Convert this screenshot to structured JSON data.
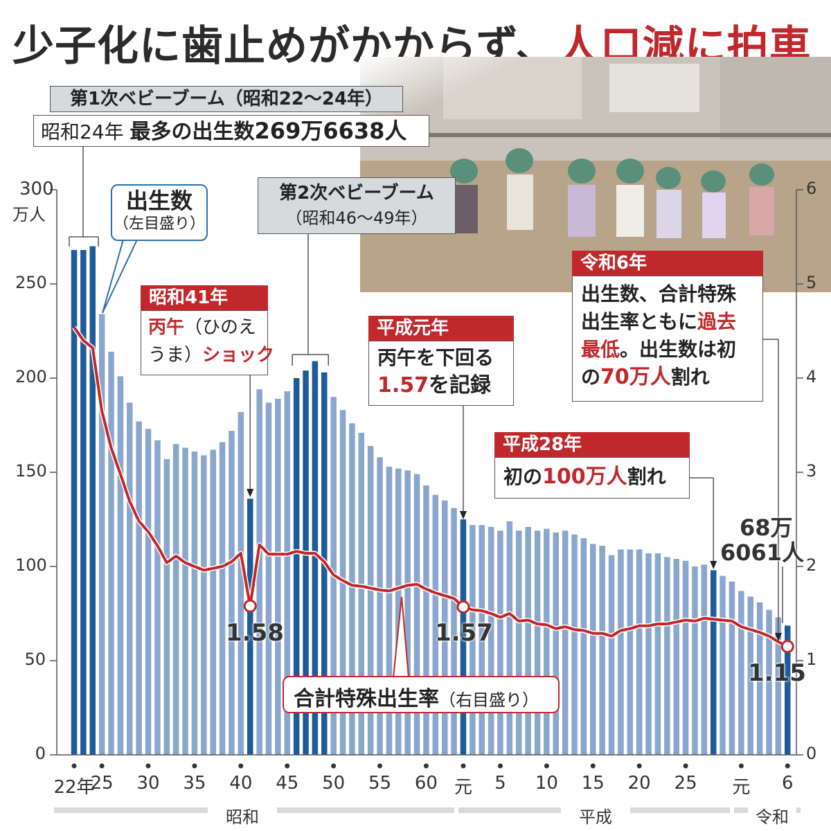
{
  "title": {
    "part1": "少子化に歯止めがかからず、",
    "part2": "人口減に拍車"
  },
  "left_axis": {
    "unit_line1": "300",
    "unit_line2": "万人",
    "ticks": [
      "0",
      "50",
      "100",
      "150",
      "200",
      "250"
    ]
  },
  "right_axis": {
    "ticks": [
      "0",
      "1",
      "2",
      "3",
      "4",
      "5",
      "6"
    ]
  },
  "x_ticks": [
    "22年",
    "25",
    "30",
    "35",
    "40",
    "45",
    "50",
    "55",
    "60",
    "元",
    "5",
    "10",
    "15",
    "20",
    "25",
    "元",
    "6"
  ],
  "eras": [
    "昭和",
    "平成",
    "令和"
  ],
  "legend_births": {
    "line1": "出生数",
    "line2": "（左目盛り）"
  },
  "legend_tfr": {
    "main": "合計特殊出生率",
    "sub": "（右目盛り）"
  },
  "boom1": {
    "head": "第1次ベビーブーム（昭和22～24年）",
    "body_pre": "昭和24年 ",
    "body_bold": "最多の出生数",
    "body_num": "269万6638人"
  },
  "boom2": {
    "line1": "第2次ベビーブーム",
    "line2": "（昭和46～49年）"
  },
  "s41": {
    "head": "昭和41年",
    "l1_red": "丙午",
    "l1_rest": "（ひのえ",
    "l2_rest": "うま）",
    "l2_red": "ショック"
  },
  "h1": {
    "head": "平成元年",
    "line1": "丙午を下回る",
    "line2_red": "1.57",
    "line2_rest": "を記録"
  },
  "h28": {
    "head": "平成28年",
    "pre": "初の",
    "red": "100万人",
    "post": "割れ"
  },
  "r6": {
    "head": "令和6年",
    "l1": "出生数、合計特殊",
    "l2_pre": "出生率ともに",
    "l2_red": "過去",
    "l3_red": "最低",
    "l3_rest": "。出生数は初",
    "l4_pre": "の",
    "l4_red": "70万人",
    "l4_post": "割れ"
  },
  "annotations": {
    "tfr_1966": "1.58",
    "tfr_1989": "1.57",
    "tfr_2024": "1.15",
    "births_2024_l1": "68万",
    "births_2024_l2": "6061人"
  },
  "colors": {
    "bar_light": "#8aa6cc",
    "bar_dark": "#1f5b9a",
    "line": "#c0282b",
    "accent_red": "#c0282b",
    "box_gray": "#d6dadc"
  },
  "chart_data": {
    "type": "bar+line",
    "x": [
      "1947",
      "1948",
      "1949",
      "1950",
      "1951",
      "1952",
      "1953",
      "1954",
      "1955",
      "1956",
      "1957",
      "1958",
      "1959",
      "1960",
      "1961",
      "1962",
      "1963",
      "1964",
      "1965",
      "1966",
      "1967",
      "1968",
      "1969",
      "1970",
      "1971",
      "1972",
      "1973",
      "1974",
      "1975",
      "1976",
      "1977",
      "1978",
      "1979",
      "1980",
      "1981",
      "1982",
      "1983",
      "1984",
      "1985",
      "1986",
      "1987",
      "1988",
      "1989",
      "1990",
      "1991",
      "1992",
      "1993",
      "1994",
      "1995",
      "1996",
      "1997",
      "1998",
      "1999",
      "2000",
      "2001",
      "2002",
      "2003",
      "2004",
      "2005",
      "2006",
      "2007",
      "2008",
      "2009",
      "2010",
      "2011",
      "2012",
      "2013",
      "2014",
      "2015",
      "2016",
      "2017",
      "2018",
      "2019",
      "2020",
      "2021",
      "2022",
      "2023",
      "2024"
    ],
    "series": [
      {
        "name": "出生数",
        "axis": "left",
        "unit": "万人",
        "values": [
          268,
          268,
          270,
          234,
          214,
          201,
          187,
          177,
          173,
          167,
          157,
          165,
          163,
          161,
          159,
          162,
          166,
          172,
          182,
          136,
          194,
          187,
          189,
          193,
          200,
          204,
          209,
          203,
          190,
          183,
          176,
          171,
          164,
          158,
          153,
          152,
          151,
          149,
          143,
          138,
          135,
          131,
          125,
          122,
          122,
          121,
          119,
          124,
          119,
          121,
          119,
          120,
          118,
          119,
          117,
          115,
          112,
          111,
          106,
          109,
          109,
          109,
          107,
          107,
          105,
          104,
          103,
          100,
          101,
          98,
          95,
          92,
          87,
          84,
          81,
          77,
          73,
          68.6
        ]
      },
      {
        "name": "合計特殊出生率",
        "axis": "right",
        "values": [
          4.54,
          4.4,
          4.32,
          3.65,
          3.26,
          2.98,
          2.69,
          2.48,
          2.37,
          2.22,
          2.04,
          2.11,
          2.04,
          2.0,
          1.96,
          1.98,
          2.0,
          2.05,
          2.14,
          1.58,
          2.23,
          2.13,
          2.13,
          2.13,
          2.16,
          2.14,
          2.14,
          2.05,
          1.91,
          1.85,
          1.8,
          1.79,
          1.77,
          1.75,
          1.74,
          1.77,
          1.8,
          1.81,
          1.76,
          1.72,
          1.69,
          1.66,
          1.57,
          1.54,
          1.53,
          1.5,
          1.46,
          1.5,
          1.42,
          1.43,
          1.39,
          1.38,
          1.34,
          1.36,
          1.33,
          1.32,
          1.29,
          1.29,
          1.26,
          1.32,
          1.34,
          1.37,
          1.37,
          1.39,
          1.39,
          1.41,
          1.43,
          1.42,
          1.45,
          1.44,
          1.43,
          1.42,
          1.36,
          1.33,
          1.3,
          1.26,
          1.2,
          1.15
        ]
      }
    ],
    "highlighted_years": [
      "1947",
      "1948",
      "1949",
      "1966",
      "1971",
      "1972",
      "1973",
      "1974",
      "1989",
      "2016",
      "2024"
    ],
    "ylim_left": [
      0,
      300
    ],
    "ylim_right": [
      0,
      6
    ],
    "grid": false
  }
}
